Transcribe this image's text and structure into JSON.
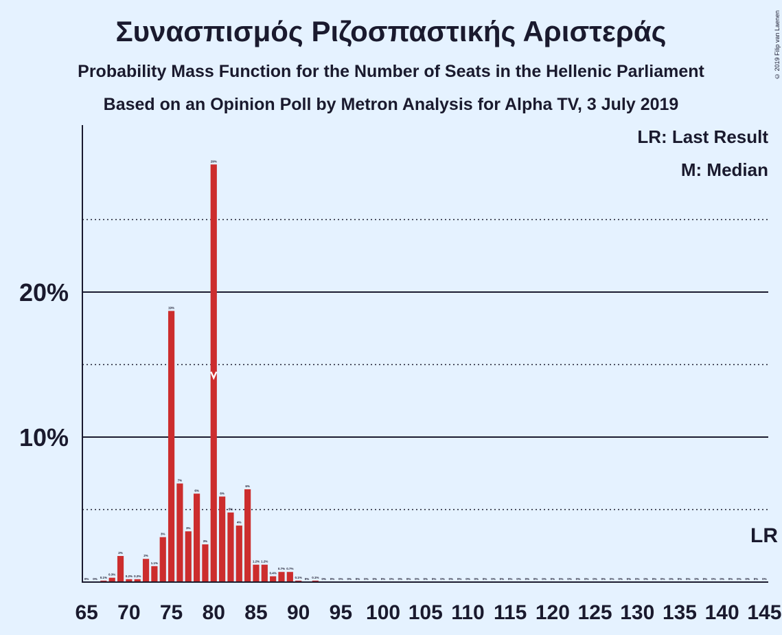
{
  "title": "Συνασπισμός Ριζοσπαστικής Αριστεράς",
  "subtitle": "Probability Mass Function for the Number of Seats in the Hellenic Parliament",
  "subtitle2": "Based on an Opinion Poll by Metron Analysis for Alpha TV, 3 July 2019",
  "copyright": "© 2019 Filip van Laenen",
  "legend": {
    "lr": "LR: Last Result",
    "m": "M: Median"
  },
  "lr_label": "LR",
  "median_marker": "M",
  "colors": {
    "bar": "#cc2d2d",
    "background": "#e5f2ff",
    "text": "#1a1a2e"
  },
  "chart_data": {
    "type": "bar",
    "x": [
      65,
      66,
      67,
      68,
      69,
      70,
      71,
      72,
      73,
      74,
      75,
      76,
      77,
      78,
      79,
      80,
      81,
      82,
      83,
      84,
      85,
      86,
      87,
      88,
      89,
      90,
      91,
      92,
      93,
      94,
      95,
      96,
      97,
      98,
      99,
      100,
      101,
      102,
      103,
      104,
      105,
      106,
      107,
      108,
      109,
      110,
      111,
      112,
      113,
      114,
      115,
      116,
      117,
      118,
      119,
      120,
      121,
      122,
      123,
      124,
      125,
      126,
      127,
      128,
      129,
      130,
      131,
      132,
      133,
      134,
      135,
      136,
      137,
      138,
      139,
      140,
      141,
      142,
      143,
      144,
      145
    ],
    "values": [
      0,
      0,
      0.1,
      0.3,
      1.8,
      0.2,
      0.2,
      1.6,
      1.1,
      3.1,
      18.7,
      6.8,
      3.5,
      6.1,
      2.6,
      28.8,
      5.9,
      4.8,
      3.9,
      6.4,
      1.2,
      1.2,
      0.4,
      0.7,
      0.7,
      0.1,
      0,
      0.1,
      0,
      0,
      0,
      0,
      0,
      0,
      0,
      0,
      0,
      0,
      0,
      0,
      0,
      0,
      0,
      0,
      0,
      0,
      0,
      0,
      0,
      0,
      0,
      0,
      0,
      0,
      0,
      0,
      0,
      0,
      0,
      0,
      0,
      0,
      0,
      0,
      0,
      0,
      0,
      0,
      0,
      0,
      0,
      0,
      0,
      0,
      0,
      0,
      0,
      0,
      0,
      0,
      0
    ],
    "labels": [
      "0%",
      "0%",
      "0.1%",
      "0.3%",
      "2%",
      "0.2%",
      "0.2%",
      "2%",
      "1.1%",
      "3%",
      "19%",
      "7%",
      "3%",
      "6%",
      "3%",
      "29%",
      "6%",
      "5%",
      "4%",
      "6%",
      "1.2%",
      "1.2%",
      "0.4%",
      "0.7%",
      "0.7%",
      "0.1%",
      "0%",
      "0.1%",
      "0%",
      "0%",
      "0%",
      "0%",
      "0%",
      "0%",
      "0%",
      "0%",
      "0%",
      "0%",
      "0%",
      "0%",
      "0%",
      "0%",
      "0%",
      "0%",
      "0%",
      "0%",
      "0%",
      "0%",
      "0%",
      "0%",
      "0%",
      "0%",
      "0%",
      "0%",
      "0%",
      "0%",
      "0%",
      "0%",
      "0%",
      "0%",
      "0%",
      "0%",
      "0%",
      "0%",
      "0%",
      "0%",
      "0%",
      "0%",
      "0%",
      "0%",
      "0%",
      "0%",
      "0%",
      "0%",
      "0%",
      "0%",
      "0%",
      "0%",
      "0%",
      "0%",
      "0%"
    ],
    "xticks": [
      65,
      70,
      75,
      80,
      85,
      90,
      95,
      100,
      105,
      110,
      115,
      120,
      125,
      130,
      135,
      140,
      145
    ],
    "yticks": [
      {
        "value": 10,
        "label": "10%"
      },
      {
        "value": 20,
        "label": "20%"
      }
    ],
    "minor_gridlines": [
      5,
      15,
      25
    ],
    "ylim": [
      0,
      31.3
    ],
    "median": 80,
    "last_result": 145
  }
}
